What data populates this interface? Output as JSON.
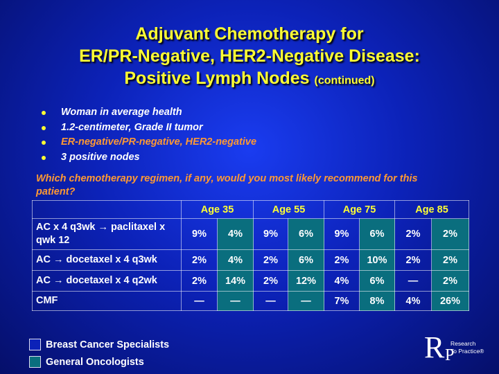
{
  "title": {
    "line1": "Adjuvant Chemotherapy for",
    "line2": "ER/PR-Negative, HER2-Negative Disease:",
    "line3": "Positive Lymph Nodes",
    "suffix": "(continued)"
  },
  "bullets": [
    {
      "text": "Woman in average health"
    },
    {
      "text": "1.2-centimeter, Grade II tumor"
    },
    {
      "text": "ER-negative/PR-negative, HER2-negative"
    },
    {
      "text": "3 positive nodes"
    }
  ],
  "question": "Which chemotherapy regimen, if any, would you most likely recommend for this patient?",
  "table": {
    "age_groups": [
      "Age 35",
      "Age 55",
      "Age 75",
      "Age 85"
    ],
    "rows": [
      {
        "label": "AC x 4 q3wk → paclitaxel x qwk 12",
        "values": [
          "9%",
          "4%",
          "9%",
          "6%",
          "9%",
          "6%",
          "2%",
          "2%"
        ]
      },
      {
        "label": "AC → docetaxel x 4 q3wk",
        "values": [
          "2%",
          "4%",
          "2%",
          "6%",
          "2%",
          "10%",
          "2%",
          "2%"
        ]
      },
      {
        "label": "AC → docetaxel x 4 q2wk",
        "values": [
          "2%",
          "14%",
          "2%",
          "12%",
          "4%",
          "6%",
          "—",
          "2%"
        ]
      },
      {
        "label": "CMF",
        "values": [
          "—",
          "—",
          "—",
          "—",
          "7%",
          "8%",
          "4%",
          "26%"
        ]
      }
    ]
  },
  "legend": {
    "specialists": "Breast Cancer Specialists",
    "oncologists": "General Oncologists"
  },
  "logo": {
    "letter_r": "R",
    "letter_p": "P",
    "line1": "Research",
    "line2": "To Practice®"
  },
  "colors": {
    "title": "#ffff33",
    "highlight": "#ff9933",
    "general_oncologist_cell": "#0a6e7e"
  }
}
